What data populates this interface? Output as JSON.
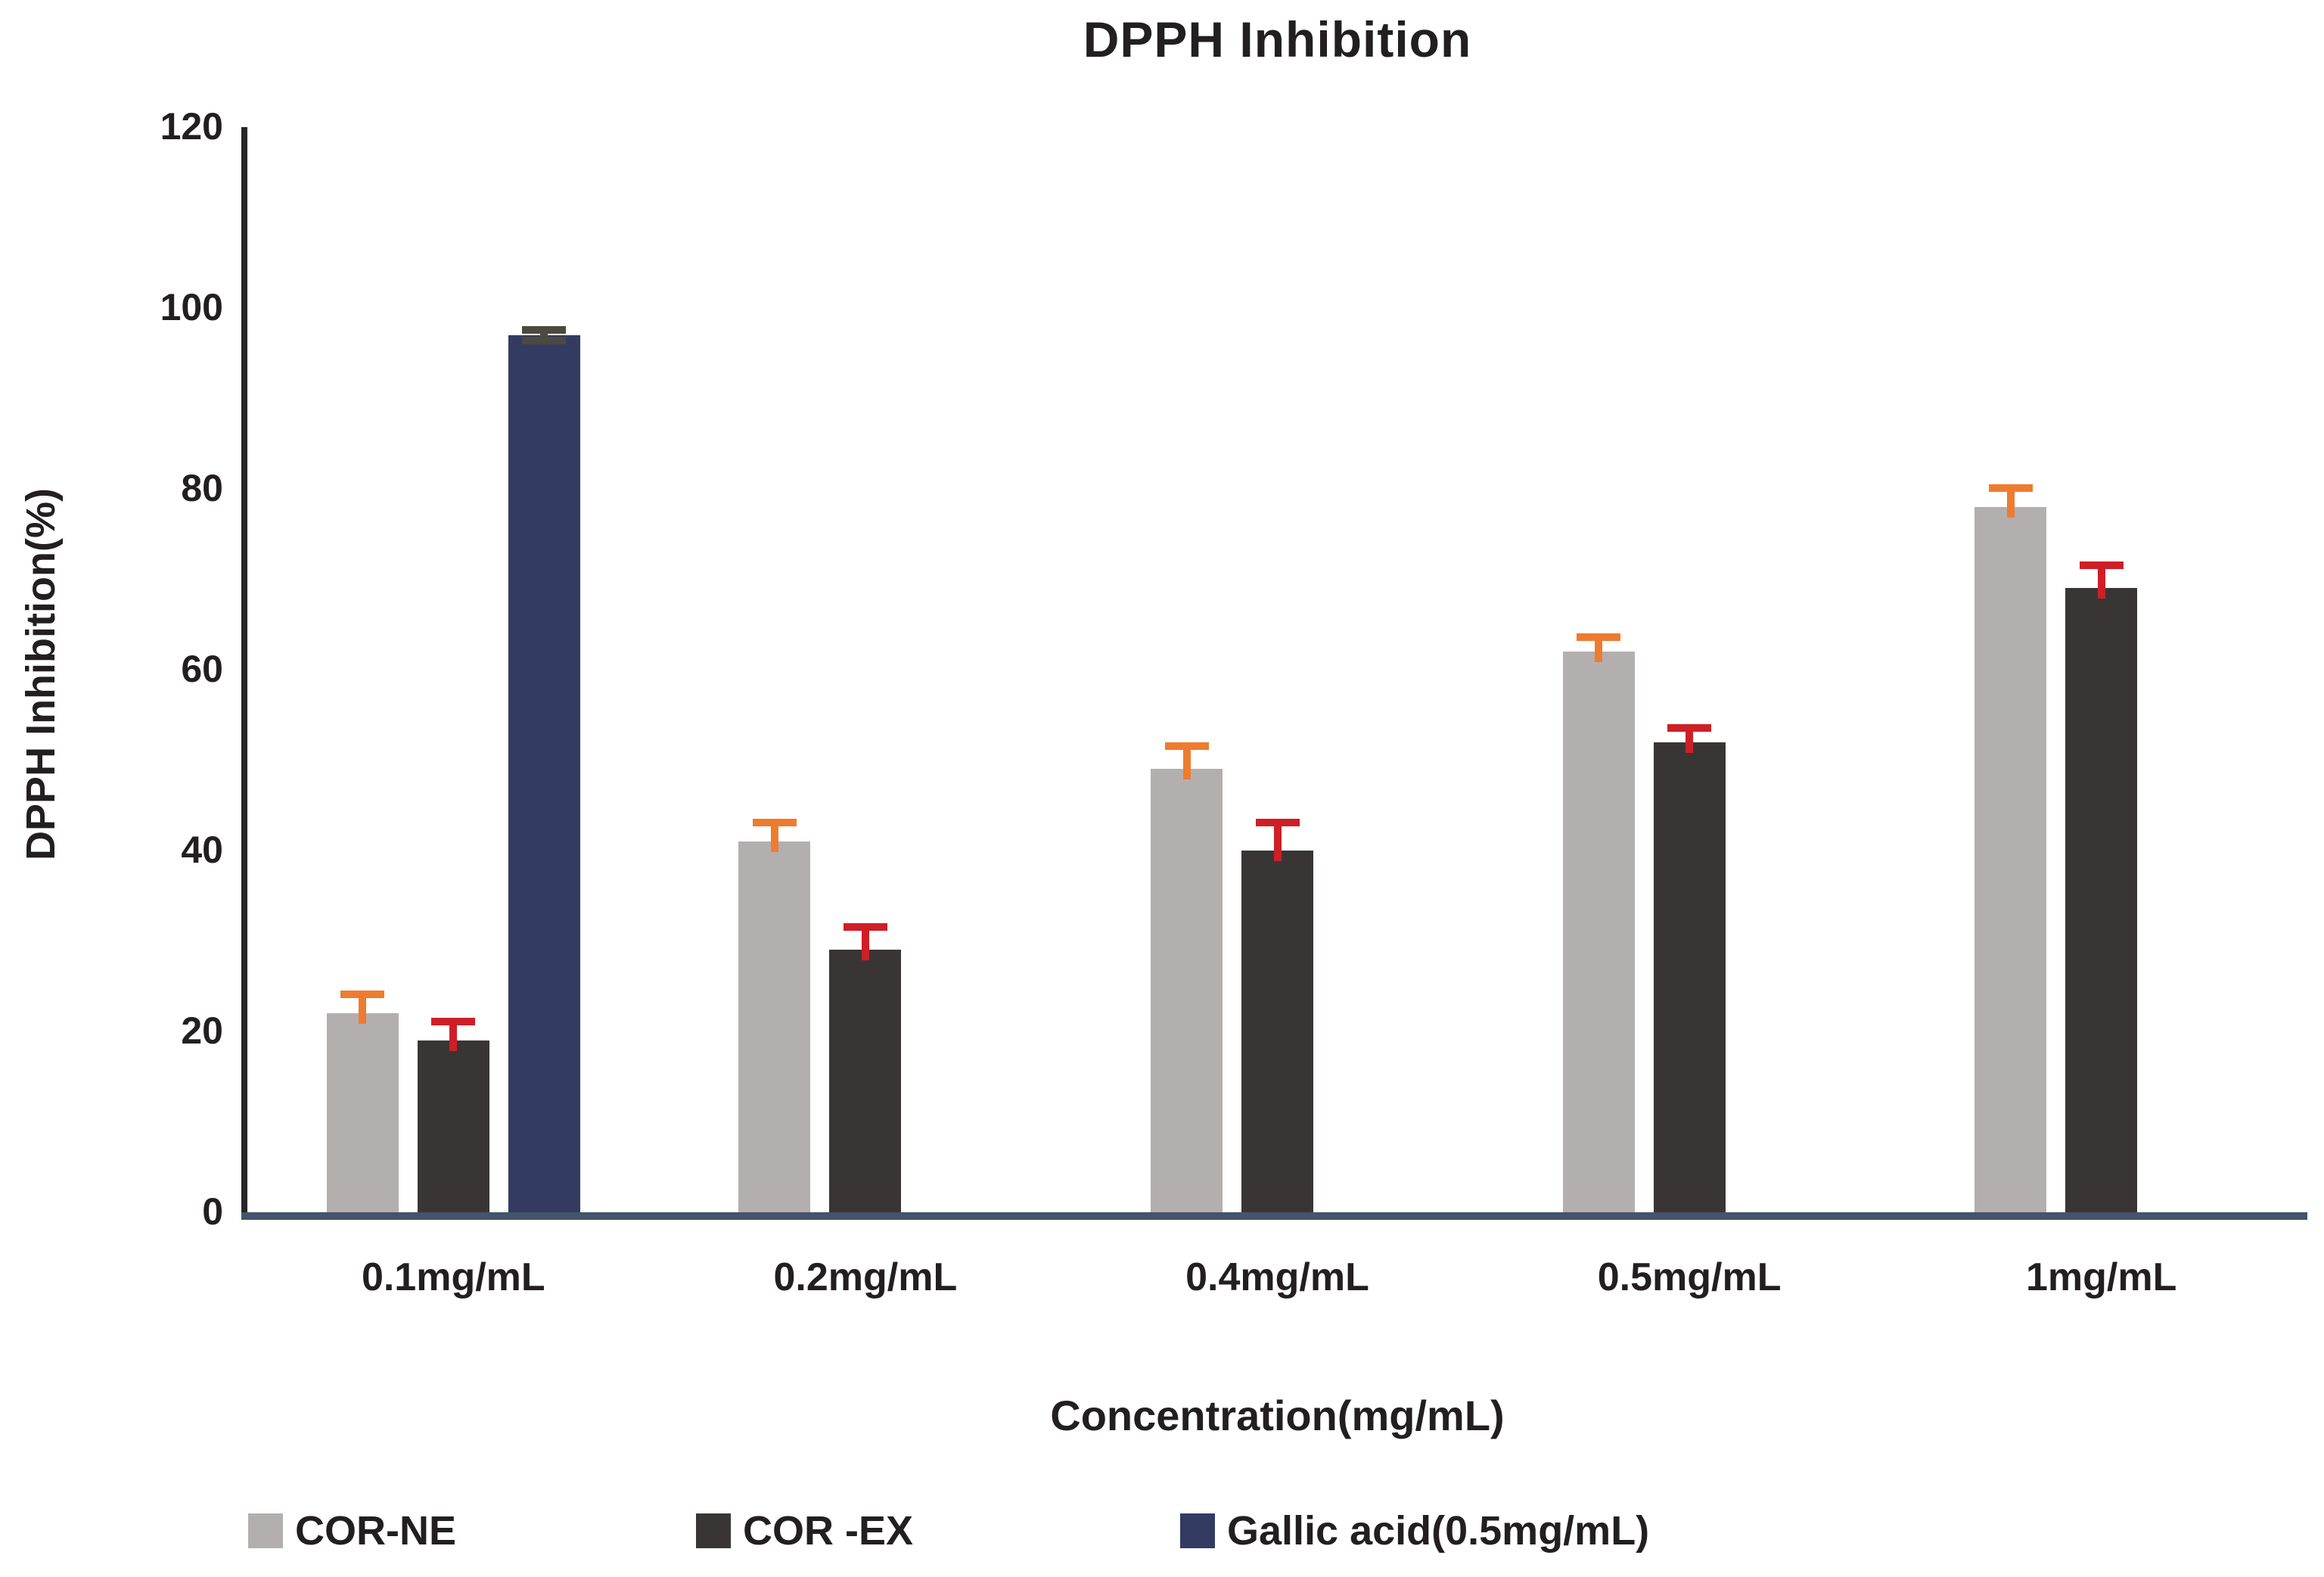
{
  "page": {
    "background": "#ffffff"
  },
  "chart_data": {
    "type": "bar",
    "title": "DPPH Inhibition",
    "xlabel": "Concentration(mg/mL)",
    "ylabel": "DPPH Inhibition(%)",
    "ylim": [
      0,
      120
    ],
    "yticks": [
      0,
      20,
      40,
      60,
      80,
      100,
      120
    ],
    "grid": false,
    "legend_position": "bottom",
    "categories": [
      "0.1mg/mL",
      "0.2mg/mL",
      "0.4mg/mL",
      "0.5mg/mL",
      "1mg/mL"
    ],
    "series": [
      {
        "name": "COR-NE",
        "color": "#b4afaf",
        "error_color": "#ee7c2f",
        "two_sided_error": false,
        "values": [
          22,
          41,
          49,
          62,
          78
        ],
        "errors": [
          2.5,
          2.5,
          3,
          2,
          2.5
        ]
      },
      {
        "name": "COR -EX",
        "color": "#3a3535",
        "error_color": "#ce1f27",
        "two_sided_error": false,
        "values": [
          19,
          29,
          40,
          52,
          69
        ],
        "errors": [
          2.5,
          3,
          3.5,
          2,
          3
        ]
      },
      {
        "name": "Gallic acid(0.5mg/mL)",
        "color": "#333b62",
        "error_color": "#4c493e",
        "two_sided_error": true,
        "values": [
          97,
          0,
          0,
          0,
          0
        ],
        "errors": [
          1,
          0,
          0,
          0,
          0
        ]
      }
    ],
    "axis_baseline_color": "#44546a",
    "yaxis_line_color": "#262626",
    "text_color": "#231f20"
  },
  "legend": {
    "item_x": [
      328,
      920,
      1560
    ]
  }
}
